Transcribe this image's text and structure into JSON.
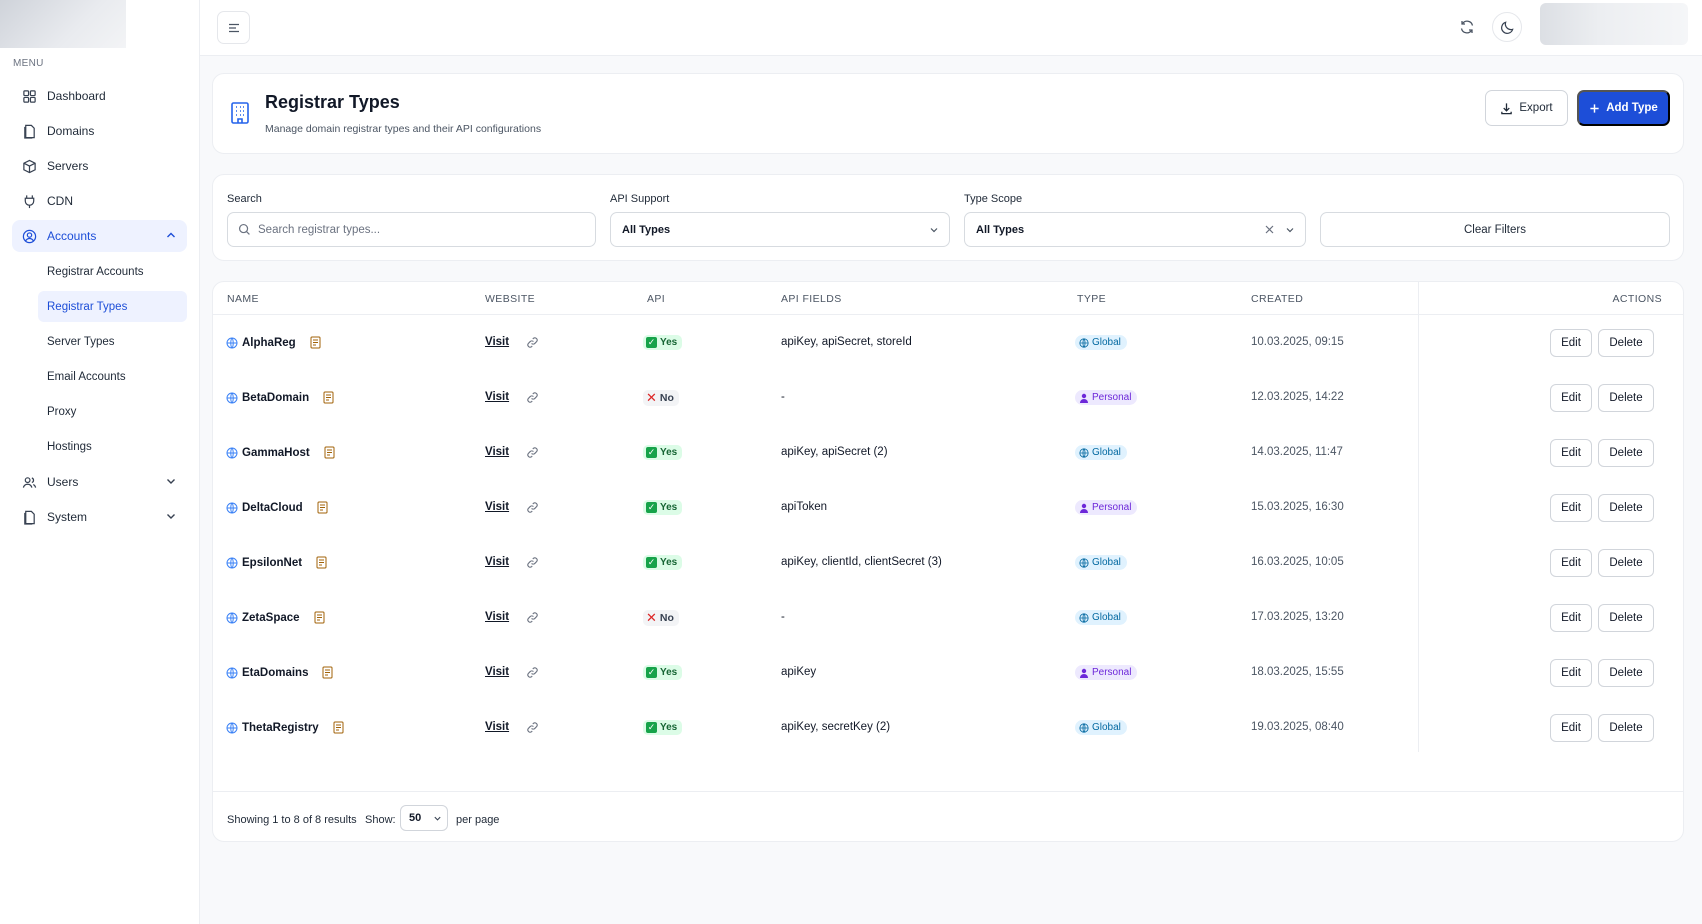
{
  "sidebar": {
    "menu_heading": "MENU",
    "items": [
      {
        "label": "Dashboard",
        "icon": "grid-icon"
      },
      {
        "label": "Domains",
        "icon": "document-icon"
      },
      {
        "label": "Servers",
        "icon": "box-icon"
      },
      {
        "label": "CDN",
        "icon": "plug-icon"
      },
      {
        "label": "Accounts",
        "icon": "user-circle-icon",
        "expanded": true
      },
      {
        "label": "Users",
        "icon": "users-icon"
      },
      {
        "label": "System",
        "icon": "document-icon"
      }
    ],
    "accounts_sub": [
      {
        "label": "Registrar Accounts"
      },
      {
        "label": "Registrar Types",
        "active": true
      },
      {
        "label": "Server Types"
      },
      {
        "label": "Email Accounts"
      },
      {
        "label": "Proxy"
      },
      {
        "label": "Hostings"
      }
    ]
  },
  "header": {
    "title": "Registrar Types",
    "subtitle": "Manage domain registrar types and their API configurations",
    "export_label": "Export",
    "add_label": "Add Type"
  },
  "filters": {
    "search_label": "Search",
    "search_placeholder": "Search registrar types...",
    "api_label": "API Support",
    "api_value": "All Types",
    "scope_label": "Type Scope",
    "scope_value": "All Types",
    "clear_label": "Clear Filters"
  },
  "table": {
    "headers": {
      "name": "NAME",
      "website": "WEBSITE",
      "api": "API",
      "api_fields": "API FIELDS",
      "type": "TYPE",
      "created": "CREATED",
      "actions": "ACTIONS"
    },
    "visit_label": "Visit",
    "edit_label": "Edit",
    "delete_label": "Delete",
    "rows": [
      {
        "name": "AlphaReg",
        "api": "Yes",
        "api_fields": "apiKey, apiSecret, storeId",
        "type": "Global",
        "created": "10.03.2025, 09:15"
      },
      {
        "name": "BetaDomain",
        "api": "No",
        "api_fields": "-",
        "type": "Personal",
        "created": "12.03.2025, 14:22"
      },
      {
        "name": "GammaHost",
        "api": "Yes",
        "api_fields": "apiKey, apiSecret (2)",
        "type": "Global",
        "created": "14.03.2025, 11:47"
      },
      {
        "name": "DeltaCloud",
        "api": "Yes",
        "api_fields": "apiToken",
        "type": "Personal",
        "created": "15.03.2025, 16:30"
      },
      {
        "name": "EpsilonNet",
        "api": "Yes",
        "api_fields": "apiKey, clientId, clientSecret (3)",
        "type": "Global",
        "created": "16.03.2025, 10:05"
      },
      {
        "name": "ZetaSpace",
        "api": "No",
        "api_fields": "-",
        "type": "Global",
        "created": "17.03.2025, 13:20"
      },
      {
        "name": "EtaDomains",
        "api": "Yes",
        "api_fields": "apiKey",
        "type": "Personal",
        "created": "18.03.2025, 15:55"
      },
      {
        "name": "ThetaRegistry",
        "api": "Yes",
        "api_fields": "apiKey, secretKey (2)",
        "type": "Global",
        "created": "19.03.2025, 08:40"
      }
    ]
  },
  "footer": {
    "showing": "Showing 1 to 8 of 8 results",
    "show_label": "Show:",
    "per_page_value": "50",
    "per_page_label": "per page"
  },
  "colors": {
    "accent": "#1d4ed8",
    "yes_bg": "#dcfce7",
    "global_bg": "#e0f2fe",
    "personal_bg": "#ede9fe"
  }
}
